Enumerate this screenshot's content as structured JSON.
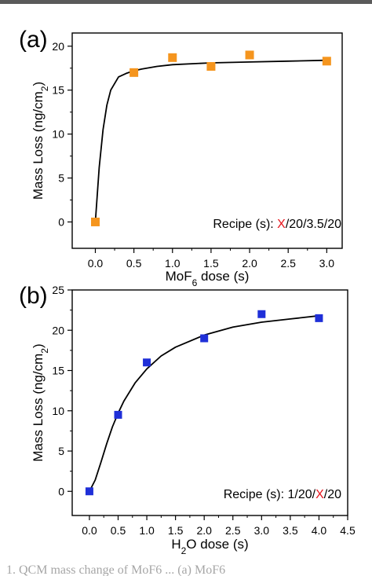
{
  "caption_fragment": "1. QCM mass change of MoF6 ... (a) MoF6",
  "chart_data": [
    {
      "type": "scatter",
      "panel_label": "(a)",
      "xlabel_parts": [
        "MoF",
        "6",
        " dose (s)"
      ],
      "ylabel_parts": [
        "Mass Loss (ng/cm",
        "2",
        ")"
      ],
      "xlim": [
        -0.3,
        3.2
      ],
      "ylim": [
        -3,
        21.5
      ],
      "xticks": [
        0.0,
        0.5,
        1.0,
        1.5,
        2.0,
        2.5,
        3.0
      ],
      "xtick_labels": [
        "0.0",
        "0.5",
        "1.0",
        "1.5",
        "2.0",
        "2.5",
        "3.0"
      ],
      "yticks": [
        0,
        5,
        10,
        15,
        20
      ],
      "ytick_labels": [
        "0",
        "5",
        "10",
        "15",
        "20"
      ],
      "series": [
        {
          "marker_color": "#f5951e",
          "x": [
            0.0,
            0.5,
            1.0,
            1.5,
            2.0,
            3.0
          ],
          "y": [
            0.0,
            17.0,
            18.7,
            17.7,
            19.0,
            18.3
          ]
        }
      ],
      "fit_curve": {
        "color": "#000000",
        "x": [
          0.0,
          0.05,
          0.1,
          0.15,
          0.2,
          0.3,
          0.4,
          0.5,
          0.6,
          0.8,
          1.0,
          1.5,
          2.0,
          2.5,
          3.0
        ],
        "y": [
          0.0,
          6.2,
          10.5,
          13.3,
          15.0,
          16.5,
          16.9,
          17.2,
          17.4,
          17.7,
          17.9,
          18.1,
          18.2,
          18.3,
          18.4
        ]
      },
      "annotation": {
        "parts": [
          {
            "text": "Recipe (s): ",
            "color": "#000000"
          },
          {
            "text": "X",
            "color": "#e8141c"
          },
          {
            "text": "/20/3.5/20",
            "color": "#000000"
          }
        ]
      }
    },
    {
      "type": "scatter",
      "panel_label": "(b)",
      "xlabel_parts": [
        "H",
        "2",
        "O dose (s)"
      ],
      "ylabel_parts": [
        "Mass Loss (ng/cm",
        "2",
        ")"
      ],
      "xlim": [
        -0.3,
        4.5
      ],
      "ylim": [
        -3,
        25
      ],
      "xticks": [
        0.0,
        0.5,
        1.0,
        1.5,
        2.0,
        2.5,
        3.0,
        3.5,
        4.0,
        4.5
      ],
      "xtick_labels": [
        "0.0",
        "0.5",
        "1.0",
        "1.5",
        "2.0",
        "2.5",
        "3.0",
        "3.5",
        "4.0",
        "4.5"
      ],
      "yticks": [
        0,
        5,
        10,
        15,
        20,
        25
      ],
      "ytick_labels": [
        "0",
        "5",
        "10",
        "15",
        "20",
        "25"
      ],
      "series": [
        {
          "marker_color": "#1f2fd8",
          "x": [
            0.0,
            0.5,
            1.0,
            2.0,
            3.0,
            4.0
          ],
          "y": [
            0.0,
            9.5,
            16.0,
            19.0,
            22.0,
            21.5
          ]
        }
      ],
      "fit_curve": {
        "color": "#000000",
        "x": [
          0.0,
          0.1,
          0.2,
          0.3,
          0.4,
          0.5,
          0.6,
          0.8,
          1.0,
          1.25,
          1.5,
          2.0,
          2.5,
          3.0,
          3.5,
          4.0
        ],
        "y": [
          0.0,
          1.4,
          3.6,
          5.9,
          8.0,
          9.7,
          11.2,
          13.5,
          15.2,
          16.8,
          17.9,
          19.4,
          20.4,
          21.0,
          21.4,
          21.8
        ]
      },
      "annotation": {
        "parts": [
          {
            "text": "Recipe (s): 1/20/",
            "color": "#000000"
          },
          {
            "text": "X",
            "color": "#e8141c"
          },
          {
            "text": "/20",
            "color": "#000000"
          }
        ]
      }
    }
  ]
}
